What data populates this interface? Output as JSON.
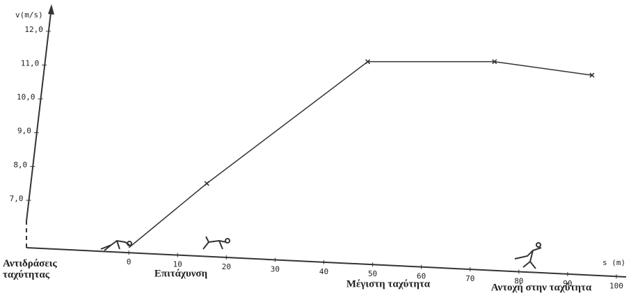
{
  "chart_data": {
    "type": "line",
    "x_label": "s (m)",
    "y_label": "v(m/s)",
    "x": [
      0,
      16,
      49,
      75,
      95
    ],
    "series": [
      {
        "color": "#333333",
        "values": [
          5.6,
          7.5,
          11.1,
          11.1,
          10.7
        ]
      }
    ],
    "xlim": [
      -21,
      102
    ],
    "ylim": [
      5.6,
      12.8
    ],
    "xticks": [
      0,
      10,
      20,
      30,
      40,
      50,
      60,
      70,
      80,
      90,
      100
    ],
    "yticks": [
      {
        "value": 7,
        "label": "7,0"
      },
      {
        "value": 8,
        "label": "8,0"
      },
      {
        "value": 9,
        "label": "9,0"
      },
      {
        "value": 10,
        "label": "10,0"
      },
      {
        "value": 11,
        "label": "11,0"
      },
      {
        "value": 12,
        "label": "12,0"
      }
    ],
    "annotations": [
      "Αντιδράσεις ταχύτητας",
      "Επιτάχυνση",
      "Μέγιστη ταχύτητα",
      "Αντοχή στην ταχύτητα"
    ]
  }
}
